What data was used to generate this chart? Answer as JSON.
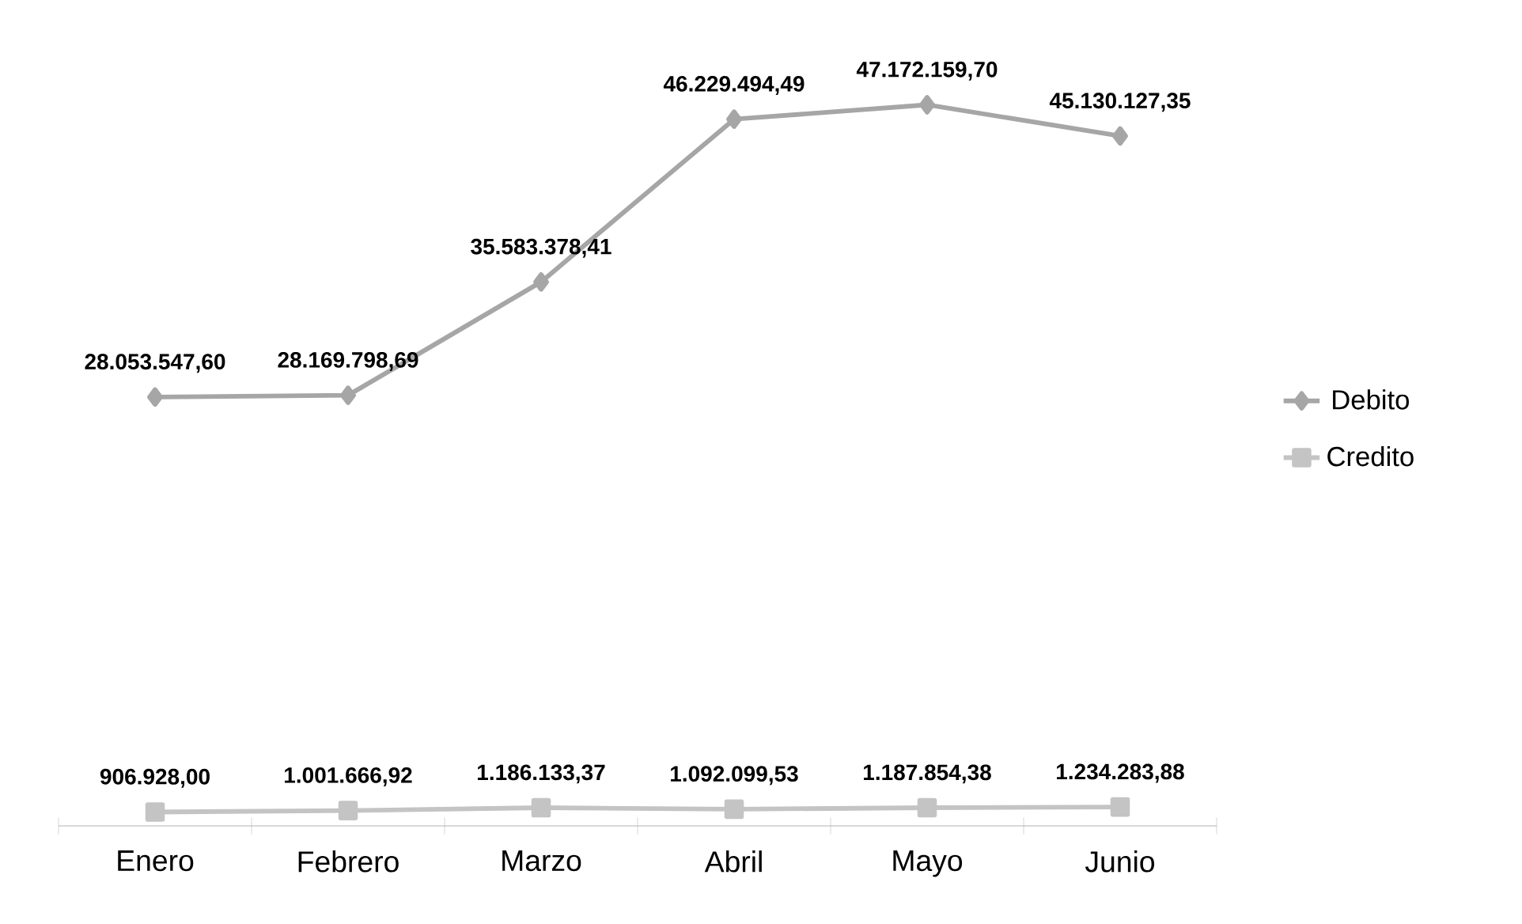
{
  "chart_data": {
    "type": "line",
    "categories": [
      "Enero",
      "Febrero",
      "Marzo",
      "Abril",
      "Mayo",
      "Junio"
    ],
    "series": [
      {
        "name": "Debito",
        "color": "#a6a6a6",
        "marker": "diamond",
        "values": [
          28053547.6,
          28169798.69,
          35583378.41,
          46229494.49,
          47172159.7,
          45130127.35
        ],
        "value_labels": [
          "28.053.547,60",
          "28.169.798,69",
          "35.583.378,41",
          "46.229.494,49",
          "47.172.159,70",
          "45.130.127,35"
        ]
      },
      {
        "name": "Credito",
        "color": "#c4c4c4",
        "marker": "square",
        "values": [
          906928.0,
          1001666.92,
          1186133.37,
          1092099.53,
          1187854.38,
          1234283.88
        ],
        "value_labels": [
          "906.928,00",
          "1.001.666,92",
          "1.186.133,37",
          "1.092.099,53",
          "1.187.854,38",
          "1.234.283,88"
        ]
      }
    ],
    "legend": "right"
  }
}
